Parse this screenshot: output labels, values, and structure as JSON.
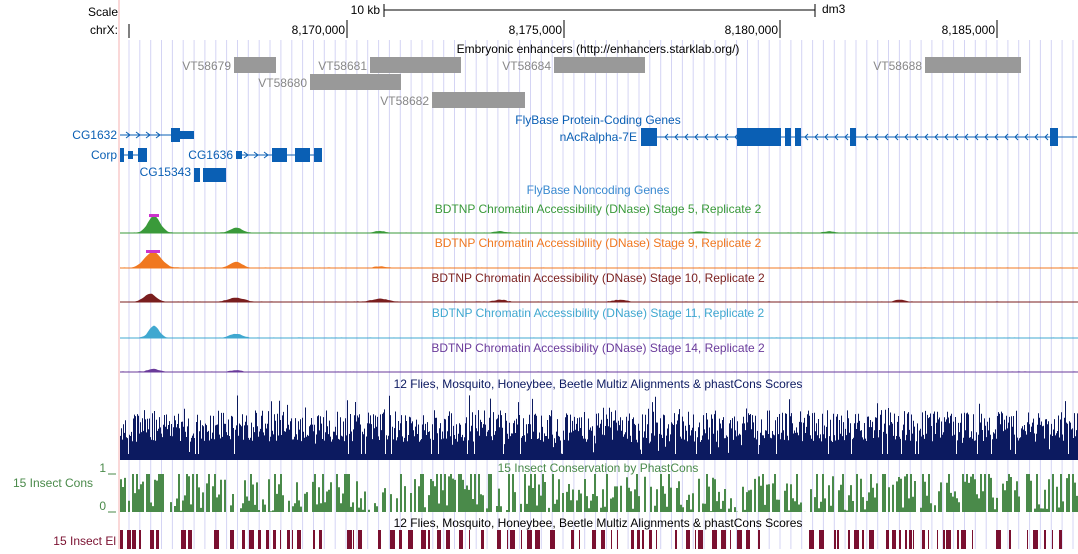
{
  "header": {
    "scale_label": "Scale",
    "scale_bar_label": "10 kb",
    "assembly": "dm3",
    "chrom_label": "chrX:",
    "positions": [
      "8,170,000",
      "8,175,000",
      "8,180,000",
      "8,185,000"
    ]
  },
  "tracks": {
    "enhancers": {
      "title": "Embryonic enhancers (http://enhancers.starklab.org/)",
      "items": [
        "VT58679",
        "VT58680",
        "VT58681",
        "VT58682",
        "VT58684",
        "VT58688"
      ]
    },
    "flybase_coding": {
      "title": "FlyBase Protein-Coding Genes",
      "genes": [
        "CG1632",
        "Corp",
        "CG1636",
        "CG15343",
        "nAcRalpha-7E"
      ]
    },
    "flybase_noncoding": {
      "title": "FlyBase Noncoding Genes"
    },
    "dnase": [
      {
        "title": "BDTNP Chromatin Accessibility (DNase) Stage 5, Replicate 2",
        "color": "#3a9a3a"
      },
      {
        "title": "BDTNP Chromatin Accessibility (DNase) Stage 9, Replicate 2",
        "color": "#f07820"
      },
      {
        "title": "BDTNP Chromatin Accessibility (DNase) Stage 10, Replicate 2",
        "color": "#7a1e1e"
      },
      {
        "title": "BDTNP Chromatin Accessibility (DNase) Stage 11, Replicate 2",
        "color": "#40a8d0"
      },
      {
        "title": "BDTNP Chromatin Accessibility (DNase) Stage 14, Replicate 2",
        "color": "#6a3a9a"
      }
    ],
    "multiz": {
      "title": "12 Flies, Mosquito, Honeybee, Beetle Multiz Alignments & phastCons Scores"
    },
    "phastcons": {
      "title": "15 Insect Conservation by PhastCons",
      "side_label": "15 Insect Cons",
      "axis_max": "1",
      "axis_min": "0"
    },
    "elements": {
      "title": "12 Flies, Mosquito, Honeybee, Beetle Multiz Alignments & phastCons Scores",
      "side_label": "15 Insect El"
    }
  },
  "colors": {
    "gene": "#0a5fb4",
    "enhancer": "#999999",
    "multiz": "#0c1a60",
    "phastcons": "#4a8a4a",
    "elements": "#7a1030",
    "grid": "#c8c8f0"
  }
}
